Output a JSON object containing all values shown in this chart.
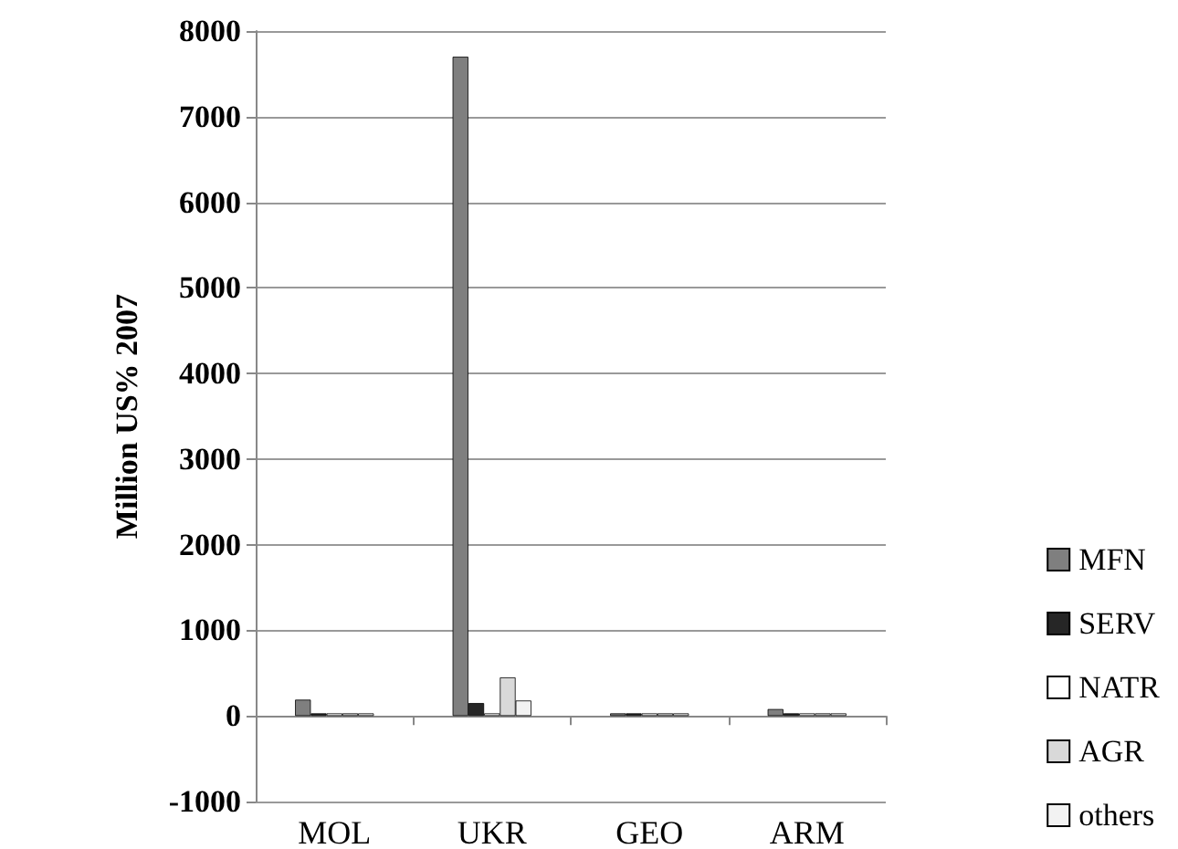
{
  "chart_data": {
    "type": "bar",
    "ylabel": "Million US% 2007",
    "categories": [
      "MOL",
      "UKR",
      "GEO",
      "ARM"
    ],
    "series": [
      {
        "name": "MFN",
        "color": "#7f7f7f",
        "values": [
          190,
          7700,
          30,
          80
        ]
      },
      {
        "name": "SERV",
        "color": "#262626",
        "values": [
          30,
          150,
          30,
          30
        ]
      },
      {
        "name": "NATR",
        "color": "#ffffff",
        "values": [
          30,
          30,
          30,
          30
        ]
      },
      {
        "name": "AGR",
        "color": "#d9d9d9",
        "values": [
          30,
          450,
          30,
          30
        ]
      },
      {
        "name": "others",
        "color": "#f2f2f2",
        "values": [
          30,
          180,
          30,
          30
        ]
      }
    ],
    "ylim": [
      -1000,
      8000
    ],
    "yticks": [
      -1000,
      0,
      1000,
      2000,
      3000,
      4000,
      5000,
      6000,
      7000,
      8000
    ],
    "grid": "y",
    "legend": "bottom right"
  }
}
